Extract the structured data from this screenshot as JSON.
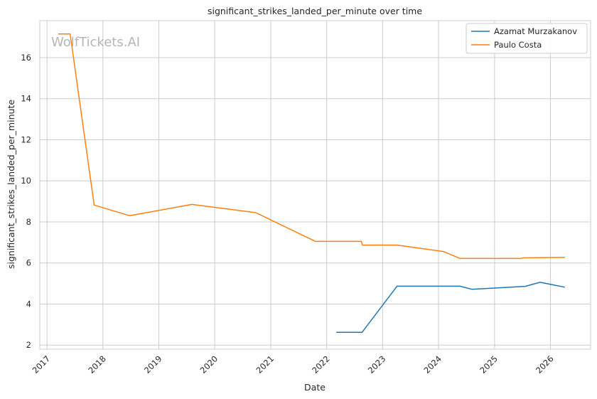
{
  "chart_data": {
    "type": "line",
    "title": "significant_strikes_landed_per_minute over time",
    "xlabel": "Date",
    "ylabel": "significant_strikes_landed_per_minute",
    "watermark": "WolfTickets.AI",
    "xlim": [
      "2016-11-15",
      "2026-09-20"
    ],
    "ylim": [
      1.8,
      17.8
    ],
    "x_ticks": [
      "2017",
      "2018",
      "2019",
      "2020",
      "2021",
      "2022",
      "2023",
      "2024",
      "2025",
      "2026"
    ],
    "y_ticks": [
      2,
      4,
      6,
      8,
      10,
      12,
      14,
      16
    ],
    "grid": true,
    "legend_position": "top-right",
    "series": [
      {
        "name": "Azamat Murzakanov",
        "color": "#1f77b4",
        "points": [
          [
            "2022-03-05",
            2.62
          ],
          [
            "2022-08-20",
            2.62
          ],
          [
            "2023-04-05",
            4.87
          ],
          [
            "2024-05-20",
            4.87
          ],
          [
            "2024-08-05",
            4.72
          ],
          [
            "2025-07-20",
            4.86
          ],
          [
            "2025-10-25",
            5.06
          ],
          [
            "2026-04-05",
            4.82
          ]
        ]
      },
      {
        "name": "Paulo Costa",
        "color": "#ff7f0e",
        "points": [
          [
            "2017-03-15",
            17.15
          ],
          [
            "2017-06-01",
            17.15
          ],
          [
            "2017-11-05",
            8.82
          ],
          [
            "2018-06-25",
            8.3
          ],
          [
            "2019-08-05",
            8.85
          ],
          [
            "2020-09-25",
            8.45
          ],
          [
            "2021-10-20",
            7.05
          ],
          [
            "2022-08-15",
            7.05
          ],
          [
            "2022-08-22",
            6.87
          ],
          [
            "2023-04-05",
            6.87
          ],
          [
            "2024-02-05",
            6.55
          ],
          [
            "2024-05-20",
            6.22
          ],
          [
            "2025-06-20",
            6.22
          ],
          [
            "2025-07-10",
            6.25
          ],
          [
            "2026-04-05",
            6.27
          ]
        ]
      }
    ]
  }
}
